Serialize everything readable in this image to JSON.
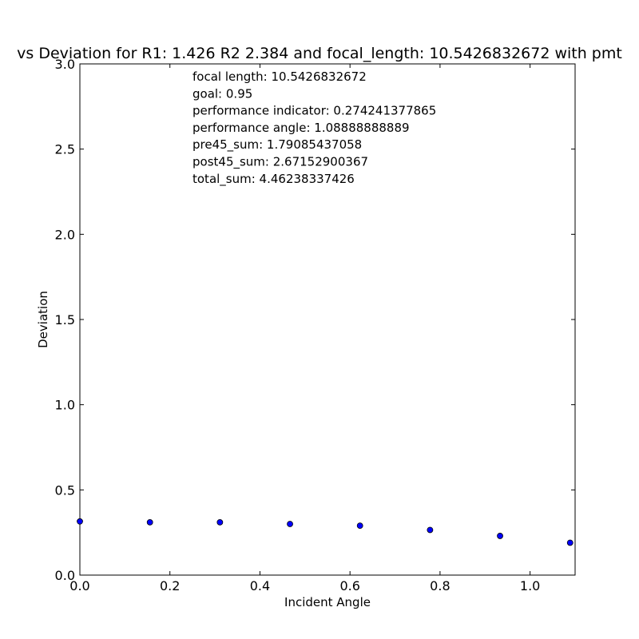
{
  "chart_data": {
    "type": "scatter",
    "title": "vs Deviation for R1: 1.426 R2 2.384 and focal_length: 10.5426832672 with pmt",
    "xlabel": "Incident Angle",
    "ylabel": "Deviation",
    "xlim": [
      0.0,
      1.1
    ],
    "ylim": [
      0.0,
      3.0
    ],
    "xticks": [
      "0.0",
      "0.2",
      "0.4",
      "0.6",
      "0.8",
      "1.0"
    ],
    "xtick_values": [
      0.0,
      0.2,
      0.4,
      0.6,
      0.8,
      1.0
    ],
    "yticks": [
      "0.0",
      "0.5",
      "1.0",
      "1.5",
      "2.0",
      "2.5",
      "3.0"
    ],
    "ytick_values": [
      0.0,
      0.5,
      1.0,
      1.5,
      2.0,
      2.5,
      3.0
    ],
    "grid": false,
    "marker_color": "#0000ff",
    "points": [
      {
        "x": 0.0,
        "y": 0.315
      },
      {
        "x": 0.1556,
        "y": 0.31
      },
      {
        "x": 0.3111,
        "y": 0.31
      },
      {
        "x": 0.4667,
        "y": 0.3
      },
      {
        "x": 0.6222,
        "y": 0.29
      },
      {
        "x": 0.7778,
        "y": 0.265
      },
      {
        "x": 0.9333,
        "y": 0.23
      },
      {
        "x": 1.0889,
        "y": 0.19
      }
    ],
    "annotations": [
      "focal length: 10.5426832672",
      "goal: 0.95",
      "performance indicator: 0.274241377865",
      "performance angle: 1.08888888889",
      "pre45_sum: 1.79085437058",
      "post45_sum: 2.67152900367",
      "total_sum: 4.46238337426"
    ]
  }
}
